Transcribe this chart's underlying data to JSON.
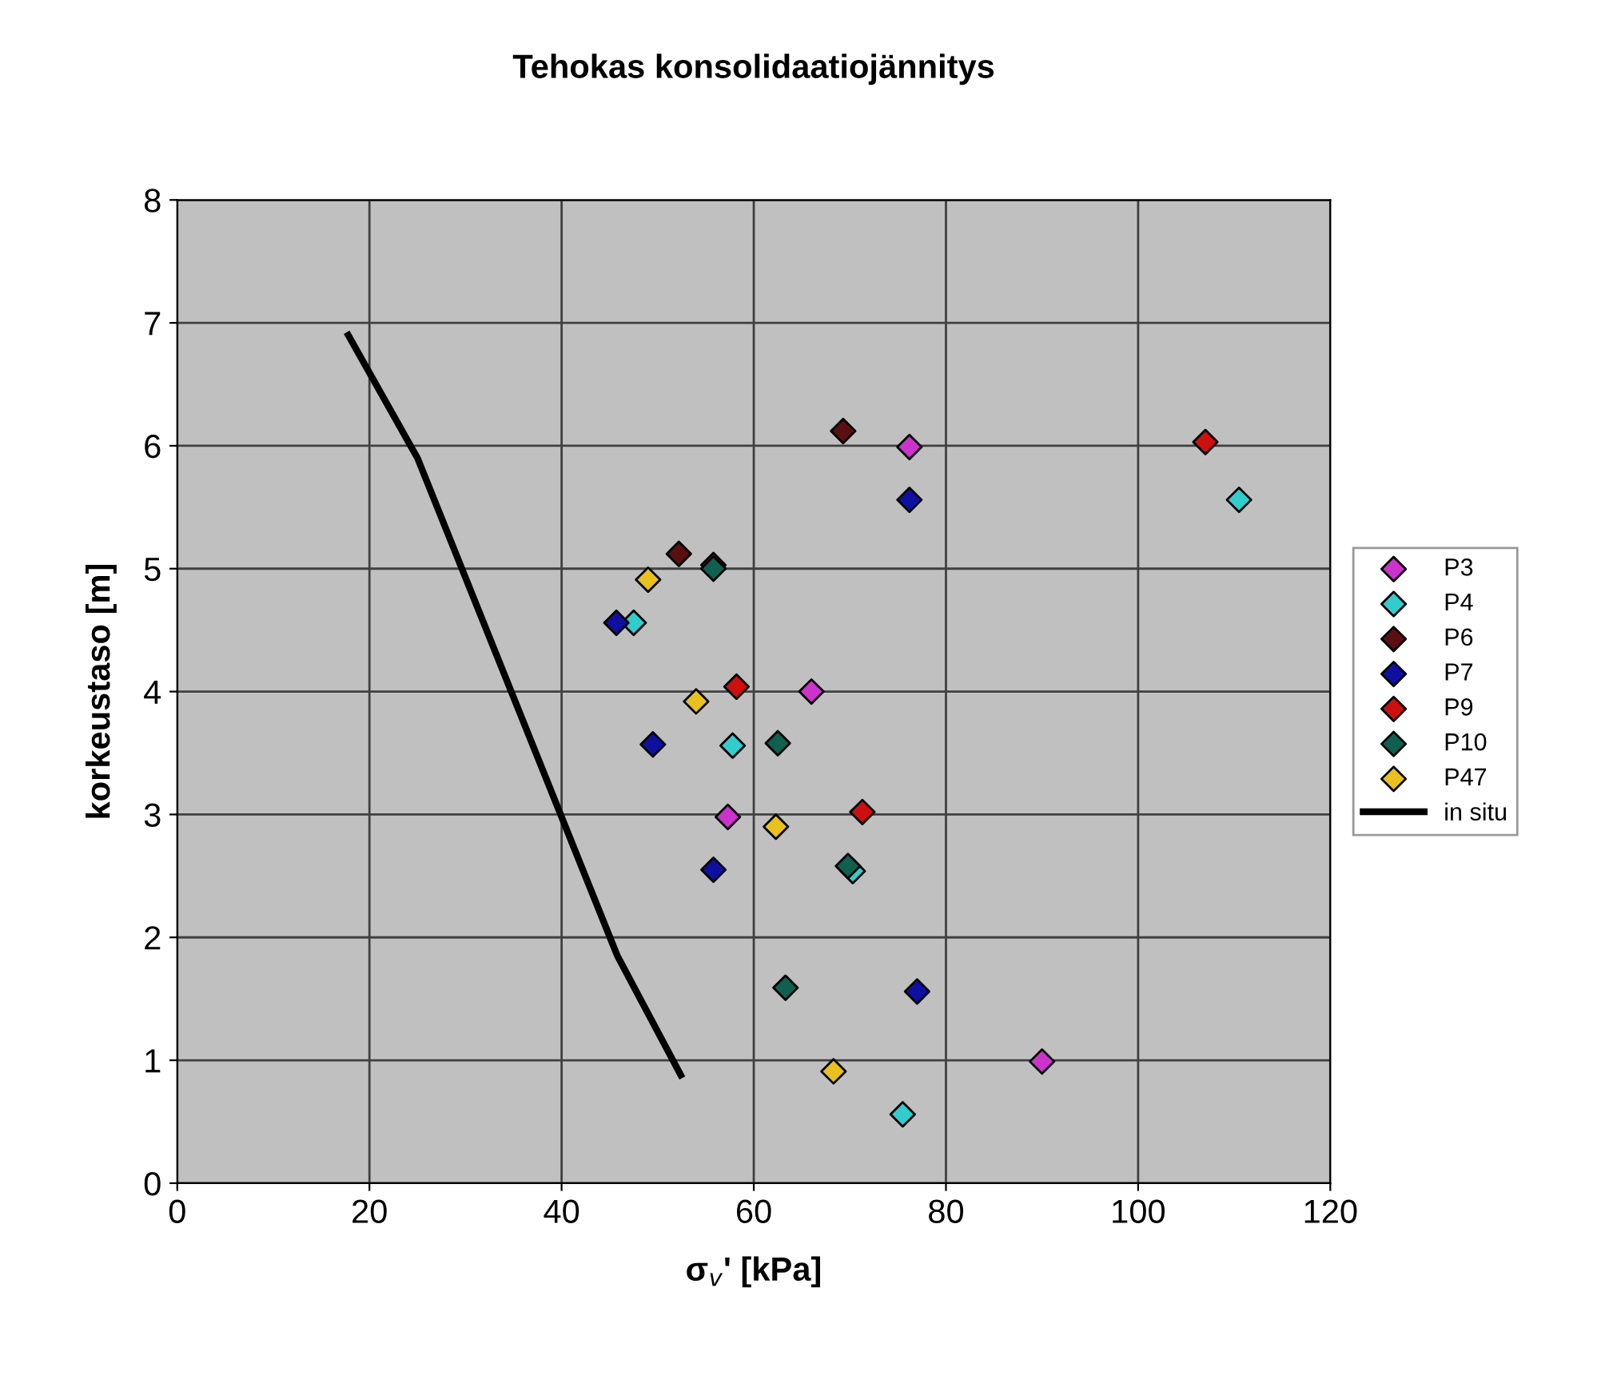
{
  "chart_data": {
    "type": "scatter",
    "title": "Tehokas konsolidaatiojännitys",
    "xlabel": "σ$_{v}$' [kPa]",
    "ylabel": "korkeustaso [m]",
    "xlim": [
      0,
      120
    ],
    "xticks": [
      0,
      20,
      40,
      60,
      80,
      100,
      120
    ],
    "ylim": [
      0,
      8
    ],
    "yticks": [
      0,
      1,
      2,
      3,
      4,
      5,
      6,
      7,
      8
    ],
    "grid": true,
    "legend": "right",
    "series": [
      {
        "name": "P3",
        "marker": "diamond",
        "color": "#cc33cc",
        "x": [
          76.2,
          66.0,
          57.3,
          90.0
        ],
        "values": [
          5.99,
          4.0,
          2.98,
          0.99
        ]
      },
      {
        "name": "P4",
        "marker": "diamond",
        "color": "#33cccc",
        "x": [
          110.5,
          47.5,
          57.8,
          70.3,
          75.5
        ],
        "values": [
          5.56,
          4.56,
          3.56,
          2.54,
          0.56
        ]
      },
      {
        "name": "P6",
        "marker": "diamond",
        "color": "#5a1010",
        "x": [
          69.3,
          52.2
        ],
        "values": [
          6.12,
          5.12
        ]
      },
      {
        "name": "P7",
        "marker": "diamond",
        "color": "#1010a0",
        "x": [
          76.2,
          45.7,
          49.5,
          55.8,
          77.0
        ],
        "values": [
          5.56,
          4.56,
          3.57,
          2.55,
          1.56
        ]
      },
      {
        "name": "P9",
        "marker": "diamond",
        "color": "#cc1010",
        "x": [
          107.0,
          55.8,
          58.2,
          71.3
        ],
        "values": [
          6.03,
          5.03,
          4.04,
          3.02
        ]
      },
      {
        "name": "P10",
        "marker": "diamond",
        "color": "#106050",
        "x": [
          55.8,
          62.5,
          69.8,
          63.3
        ],
        "values": [
          5.0,
          3.58,
          2.58,
          1.59
        ]
      },
      {
        "name": "P47",
        "marker": "diamond",
        "color": "#e8c020",
        "x": [
          49.0,
          54.0,
          62.3,
          68.3
        ],
        "values": [
          4.91,
          3.92,
          2.9,
          0.91
        ]
      },
      {
        "name": "in situ",
        "type": "line",
        "marker": "none",
        "color": "#000000",
        "line_style": "solid",
        "x": [
          17.8,
          25.0,
          45.8,
          52.4
        ],
        "values": [
          6.9,
          5.9,
          1.85,
          0.88
        ]
      }
    ]
  }
}
